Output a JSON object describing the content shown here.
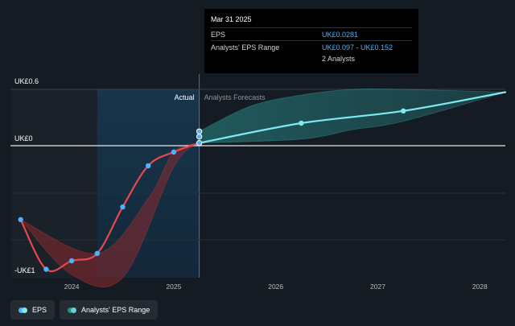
{
  "chart_data": {
    "type": "line",
    "x_axis": {
      "min": 2023.4,
      "max": 2028.25,
      "ticks": [
        2024,
        2025,
        2026,
        2027,
        2028
      ]
    },
    "y_axis": {
      "min": -1.0,
      "max": 0.6,
      "tick_labels": [
        {
          "value": 0.6,
          "label": "UK£0.6"
        },
        {
          "value": 0,
          "label": "UK£0"
        },
        {
          "value": -1.0,
          "label": "-UK£1"
        }
      ]
    },
    "sections": {
      "actual_label": "Actual",
      "forecast_label": "Analysts Forecasts",
      "split_x": 2025.25
    },
    "highlight": {
      "x_start": 2024.25,
      "x_end": 2025.25
    },
    "series": [
      {
        "name": "EPS",
        "color": "#e8474f",
        "points": [
          {
            "x": 2023.5,
            "y": -0.7
          },
          {
            "x": 2023.75,
            "y": -1.17
          },
          {
            "x": 2024.0,
            "y": -1.09
          },
          {
            "x": 2024.25,
            "y": -1.02
          },
          {
            "x": 2024.5,
            "y": -0.58
          },
          {
            "x": 2024.75,
            "y": -0.19
          },
          {
            "x": 2025.0,
            "y": -0.06
          },
          {
            "x": 2025.25,
            "y": 0.0281
          }
        ]
      },
      {
        "name": "EPS Forecast",
        "color": "#7eeaf0",
        "points": [
          {
            "x": 2025.25,
            "y": 0.0281
          },
          {
            "x": 2026.25,
            "y": 0.24
          },
          {
            "x": 2027.25,
            "y": 0.37
          },
          {
            "x": 2028.25,
            "y": 0.57
          }
        ]
      }
    ],
    "range_band": {
      "name": "Analysts' EPS Range",
      "color": "#2a8c8c",
      "upper": [
        {
          "x": 2025.25,
          "y": 0.152
        },
        {
          "x": 2025.75,
          "y": 0.42
        },
        {
          "x": 2026.25,
          "y": 0.54
        },
        {
          "x": 2026.75,
          "y": 0.6
        },
        {
          "x": 2027.25,
          "y": 0.6
        },
        {
          "x": 2028.25,
          "y": 0.57
        }
      ],
      "lower": [
        {
          "x": 2025.25,
          "y": 0.0281
        },
        {
          "x": 2026.25,
          "y": 0.07
        },
        {
          "x": 2026.75,
          "y": 0.17
        },
        {
          "x": 2027.25,
          "y": 0.26
        },
        {
          "x": 2028.25,
          "y": 0.57
        }
      ]
    },
    "past_range_band": {
      "color": "#8a2a2f",
      "upper": [
        {
          "x": 2023.5,
          "y": -0.7
        },
        {
          "x": 2024.25,
          "y": -1.02
        },
        {
          "x": 2024.75,
          "y": -0.5
        },
        {
          "x": 2025.0,
          "y": -0.06
        },
        {
          "x": 2025.25,
          "y": 0.0281
        }
      ],
      "lower": [
        {
          "x": 2023.5,
          "y": -0.7
        },
        {
          "x": 2024.0,
          "y": -1.22
        },
        {
          "x": 2024.5,
          "y": -1.25
        },
        {
          "x": 2025.0,
          "y": -0.2
        },
        {
          "x": 2025.25,
          "y": 0.0281
        }
      ]
    },
    "range_markers": [
      {
        "x": 2025.25,
        "y": 0.097
      },
      {
        "x": 2025.25,
        "y": 0.152
      }
    ]
  },
  "tooltip": {
    "date": "Mar 31 2025",
    "eps_label": "EPS",
    "eps_value": "UK£0.0281",
    "range_label": "Analysts' EPS Range",
    "range_value": "UK£0.097 - UK£0.152",
    "analysts": "2 Analysts"
  },
  "legend": {
    "eps_label": "EPS",
    "range_label": "Analysts' EPS Range",
    "eps_colors": [
      "#49b3ff",
      "#7eeaf0"
    ],
    "range_colors": [
      "#2a8c8c",
      "#6fd0d0"
    ]
  }
}
